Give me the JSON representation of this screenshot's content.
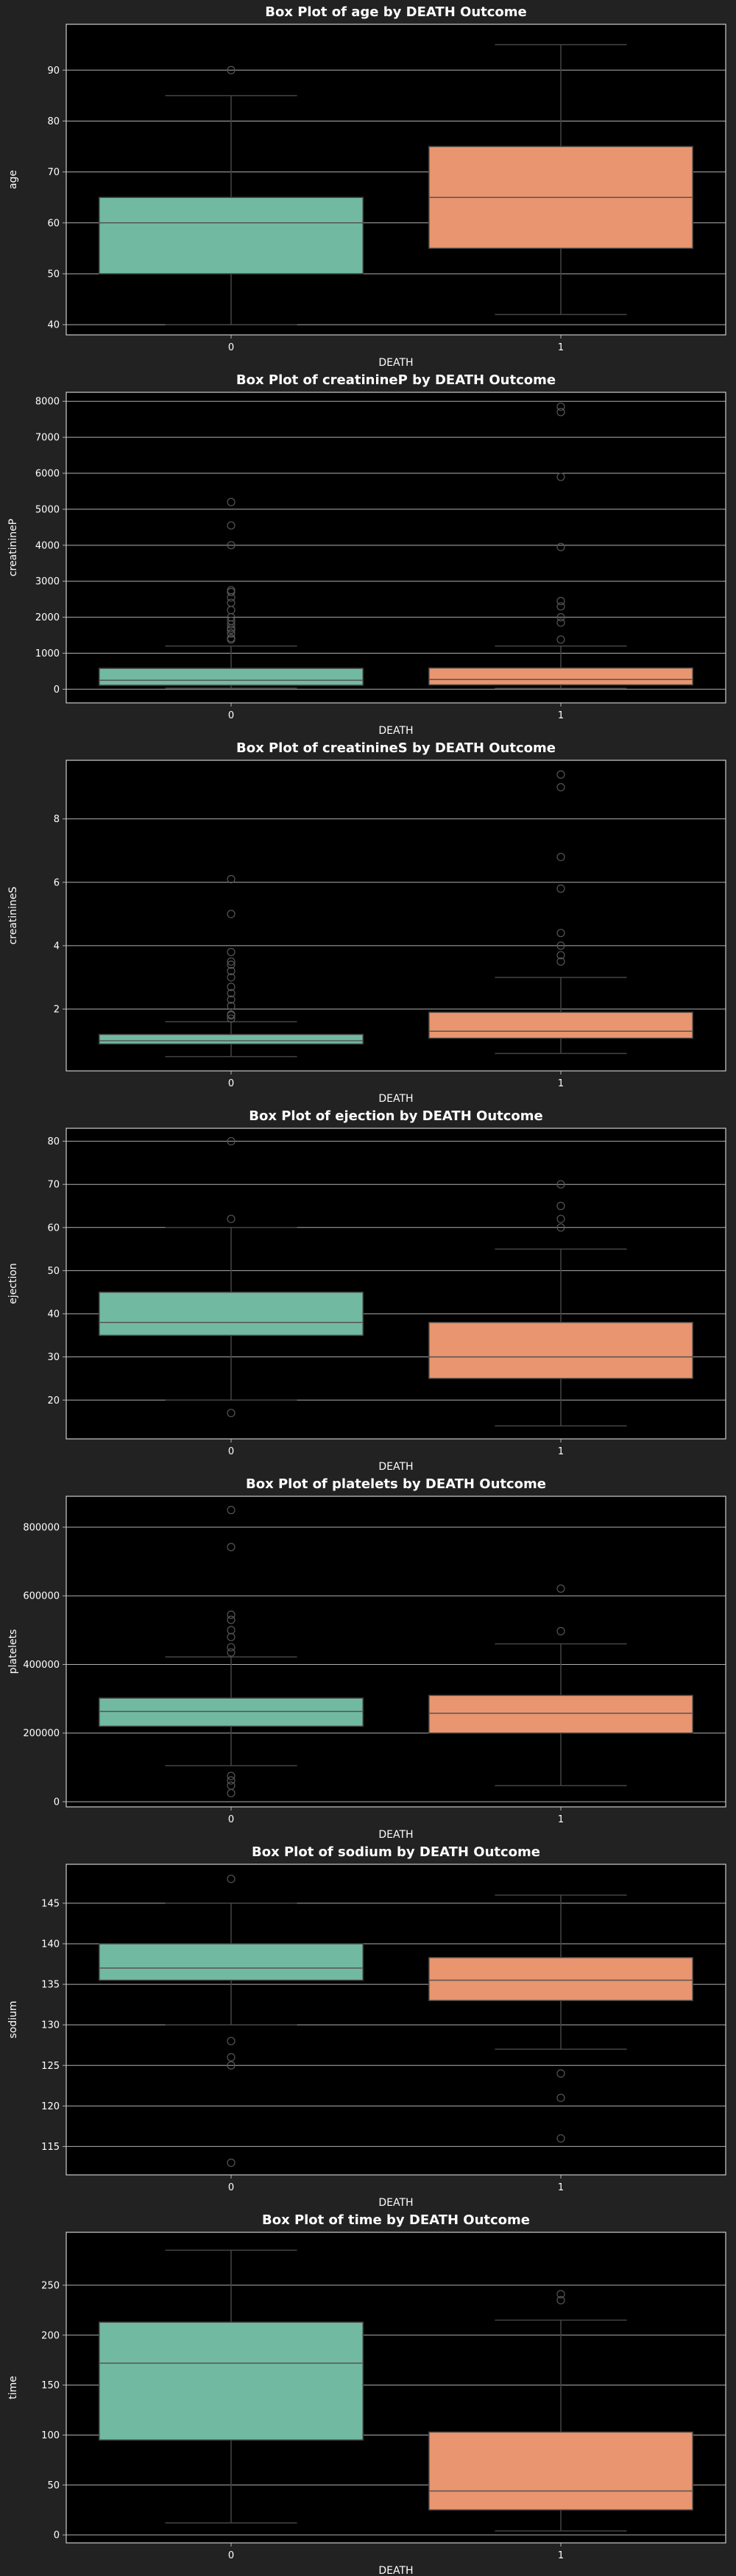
{
  "theme": {
    "page_bg": "#222222",
    "plot_bg": "#000000",
    "grid": "#b0b0b0",
    "text": "#ffffff",
    "group_colors": [
      "#72b9a2",
      "#e9956f"
    ],
    "median_line": "#555555",
    "whisker": "#444444",
    "flier_edge": "#555555"
  },
  "chart_data": [
    {
      "type": "box",
      "title": "Box Plot of age by DEATH Outcome",
      "xlabel": "DEATH",
      "ylabel": "age",
      "categories": [
        "0",
        "1"
      ],
      "ylim": [
        38,
        99
      ],
      "yticks": [
        40,
        50,
        60,
        70,
        80,
        90
      ],
      "grid": true,
      "boxes": [
        {
          "q1": 50,
          "median": 60,
          "q3": 65,
          "whisker_low": 40,
          "whisker_high": 85,
          "fliers": [
            90
          ]
        },
        {
          "q1": 55,
          "median": 65,
          "q3": 75,
          "whisker_low": 42,
          "whisker_high": 95,
          "fliers": []
        }
      ]
    },
    {
      "type": "box",
      "title": "Box Plot of creatinineP by DEATH Outcome",
      "xlabel": "DEATH",
      "ylabel": "creatinineP",
      "categories": [
        "0",
        "1"
      ],
      "ylim": [
        -380,
        8250
      ],
      "yticks": [
        0,
        1000,
        2000,
        3000,
        4000,
        5000,
        6000,
        7000,
        8000
      ],
      "grid": true,
      "boxes": [
        {
          "q1": 110,
          "median": 250,
          "q3": 580,
          "whisker_low": 30,
          "whisker_high": 1200,
          "fliers": [
            1380,
            1420,
            1550,
            1650,
            1700,
            1800,
            1900,
            2000,
            2200,
            2400,
            2550,
            2700,
            2750,
            4000,
            4550,
            5200
          ]
        },
        {
          "q1": 120,
          "median": 270,
          "q3": 590,
          "whisker_low": 25,
          "whisker_high": 1200,
          "fliers": [
            1380,
            1850,
            2000,
            2300,
            2450,
            3950,
            5900,
            7700,
            7850
          ]
        }
      ]
    },
    {
      "type": "box",
      "title": "Box Plot of creatinineS by DEATH Outcome",
      "xlabel": "DEATH",
      "ylabel": "creatinineS",
      "categories": [
        "0",
        "1"
      ],
      "ylim": [
        0.05,
        9.85
      ],
      "yticks": [
        2,
        4,
        6,
        8
      ],
      "grid": true,
      "boxes": [
        {
          "q1": 0.9,
          "median": 1.0,
          "q3": 1.2,
          "whisker_low": 0.5,
          "whisker_high": 1.6,
          "fliers": [
            1.7,
            1.8,
            1.83,
            2.1,
            2.3,
            2.5,
            2.7,
            3.0,
            3.2,
            3.4,
            3.5,
            3.8,
            5.0,
            6.1
          ]
        },
        {
          "q1": 1.08,
          "median": 1.3,
          "q3": 1.9,
          "whisker_low": 0.6,
          "whisker_high": 3.0,
          "fliers": [
            3.5,
            3.7,
            4.0,
            4.4,
            5.8,
            6.8,
            9.0,
            9.4
          ]
        }
      ]
    },
    {
      "type": "box",
      "title": "Box Plot of ejection by DEATH Outcome",
      "xlabel": "DEATH",
      "ylabel": "ejection",
      "categories": [
        "0",
        "1"
      ],
      "ylim": [
        11,
        83
      ],
      "yticks": [
        20,
        30,
        40,
        50,
        60,
        70,
        80
      ],
      "grid": true,
      "boxes": [
        {
          "q1": 35,
          "median": 38,
          "q3": 45,
          "whisker_low": 20,
          "whisker_high": 60,
          "fliers": [
            17,
            62,
            80
          ]
        },
        {
          "q1": 25,
          "median": 30,
          "q3": 38,
          "whisker_low": 14,
          "whisker_high": 55,
          "fliers": [
            60,
            62,
            65,
            70
          ]
        }
      ]
    },
    {
      "type": "box",
      "title": "Box Plot of platelets by DEATH Outcome",
      "xlabel": "DEATH",
      "ylabel": "platelets",
      "categories": [
        "0",
        "1"
      ],
      "ylim": [
        -15000,
        890000
      ],
      "yticks": [
        0,
        200000,
        400000,
        600000,
        800000
      ],
      "grid": true,
      "boxes": [
        {
          "q1": 220000,
          "median": 263000,
          "q3": 302000,
          "whisker_low": 105000,
          "whisker_high": 422000,
          "fliers": [
            25100,
            47000,
            62000,
            75000,
            435000,
            450000,
            480000,
            500000,
            530000,
            545000,
            742000,
            850000
          ]
        },
        {
          "q1": 200000,
          "median": 258000,
          "q3": 310000,
          "whisker_low": 47000,
          "whisker_high": 460000,
          "fliers": [
            497000,
            621000
          ]
        }
      ]
    },
    {
      "type": "box",
      "title": "Box Plot of sodium by DEATH Outcome",
      "xlabel": "DEATH",
      "ylabel": "sodium",
      "categories": [
        "0",
        "1"
      ],
      "ylim": [
        111.5,
        149.8
      ],
      "yticks": [
        115,
        120,
        125,
        130,
        135,
        140,
        145
      ],
      "grid": true,
      "boxes": [
        {
          "q1": 135.5,
          "median": 137,
          "q3": 140,
          "whisker_low": 130,
          "whisker_high": 145,
          "fliers": [
            113,
            125,
            126,
            128,
            148
          ]
        },
        {
          "q1": 133,
          "median": 135.5,
          "q3": 138.3,
          "whisker_low": 127,
          "whisker_high": 146,
          "fliers": [
            116,
            121,
            124
          ]
        }
      ]
    },
    {
      "type": "box",
      "title": "Box Plot of time by DEATH Outcome",
      "xlabel": "DEATH",
      "ylabel": "time",
      "categories": [
        "0",
        "1"
      ],
      "ylim": [
        -8,
        303
      ],
      "yticks": [
        0,
        50,
        100,
        150,
        200,
        250
      ],
      "grid": true,
      "boxes": [
        {
          "q1": 95,
          "median": 172,
          "q3": 213,
          "whisker_low": 12,
          "whisker_high": 285,
          "fliers": []
        },
        {
          "q1": 25,
          "median": 44,
          "q3": 103,
          "whisker_low": 4,
          "whisker_high": 215,
          "fliers": [
            235,
            241
          ]
        }
      ]
    }
  ]
}
